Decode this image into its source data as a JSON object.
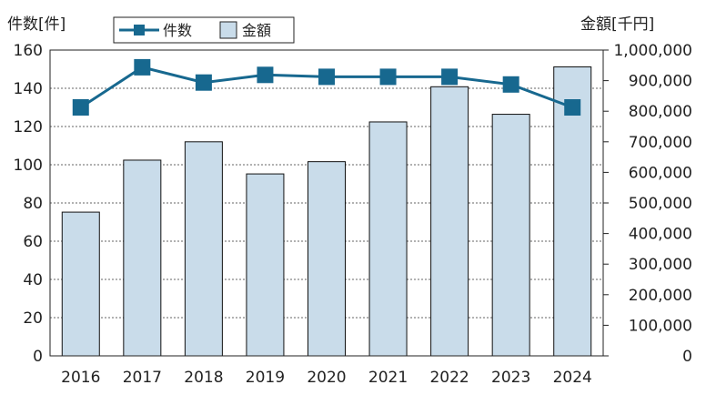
{
  "chart_data": {
    "type": "bar",
    "categories": [
      "2016",
      "2017",
      "2018",
      "2019",
      "2020",
      "2021",
      "2022",
      "2023",
      "2024"
    ],
    "series": [
      {
        "name": "金額",
        "chart_type": "bar",
        "axis": "right",
        "values": [
          470000,
          640000,
          700000,
          595000,
          635000,
          765000,
          880000,
          790000,
          945000
        ],
        "color": "#c9dcea"
      },
      {
        "name": "件数",
        "chart_type": "line",
        "axis": "left",
        "values": [
          130,
          151,
          143,
          147,
          146,
          146,
          146,
          142,
          130
        ],
        "color": "#17688f"
      }
    ],
    "ylabel_left": "件数[件]",
    "ylabel_right": "金額[千円]",
    "ylim_left": [
      0,
      160
    ],
    "ylim_right": [
      0,
      1000000
    ],
    "yticks_left": [
      "0",
      "20",
      "40",
      "60",
      "80",
      "100",
      "120",
      "140",
      "160"
    ],
    "yticks_right": [
      "0",
      "100,000",
      "200,000",
      "300,000",
      "400,000",
      "500,000",
      "600,000",
      "700,000",
      "800,000",
      "900,000",
      "1,000,000"
    ],
    "grid": true,
    "legend_position": "top-center"
  }
}
